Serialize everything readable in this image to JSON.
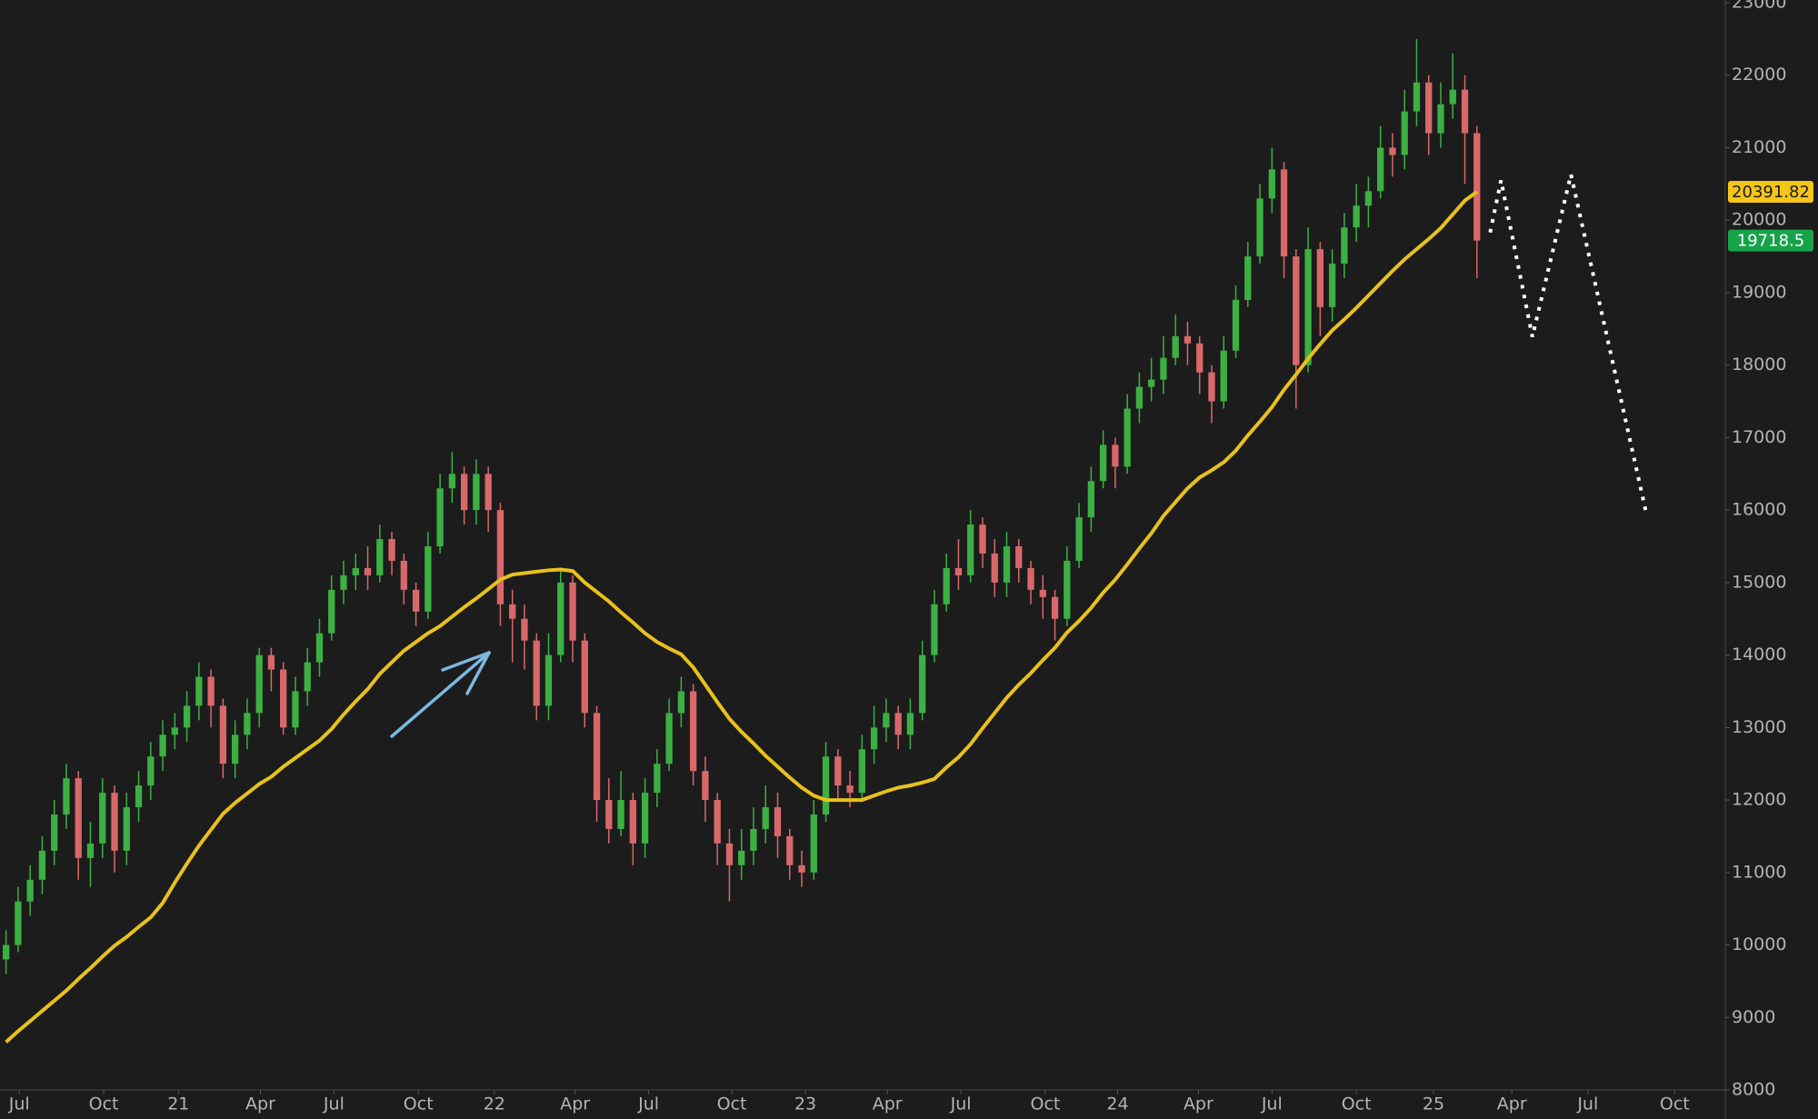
{
  "chart_data": {
    "type": "candlestick",
    "background": "#1c1c1c",
    "up_color": "#3cb043",
    "down_color": "#d9686a",
    "xlim": [
      -0.5,
      142.6
    ],
    "ylim": [
      8000,
      23000
    ],
    "xticks": [
      {
        "value": 1.1,
        "label": "Jul"
      },
      {
        "value": 8.1,
        "label": "Oct"
      },
      {
        "value": 14.3,
        "label": "21"
      },
      {
        "value": 21.1,
        "label": "Apr"
      },
      {
        "value": 27.2,
        "label": "Jul"
      },
      {
        "value": 34.2,
        "label": "Oct"
      },
      {
        "value": 40.5,
        "label": "22"
      },
      {
        "value": 47.2,
        "label": "Apr"
      },
      {
        "value": 53.3,
        "label": "Jul"
      },
      {
        "value": 60.2,
        "label": "Oct"
      },
      {
        "value": 66.3,
        "label": "23"
      },
      {
        "value": 73.1,
        "label": "Apr"
      },
      {
        "value": 79.2,
        "label": "Jul"
      },
      {
        "value": 86.2,
        "label": "Oct"
      },
      {
        "value": 92.2,
        "label": "24"
      },
      {
        "value": 98.9,
        "label": "Apr"
      },
      {
        "value": 105,
        "label": "Jul"
      },
      {
        "value": 112,
        "label": "Oct"
      },
      {
        "value": 118.4,
        "label": "25"
      },
      {
        "value": 124.9,
        "label": "Apr"
      },
      {
        "value": 131.2,
        "label": "Jul"
      },
      {
        "value": 138.4,
        "label": "Oct"
      }
    ],
    "yticks": [
      8000,
      9000,
      10000,
      11000,
      12000,
      13000,
      14000,
      15000,
      16000,
      17000,
      18000,
      19000,
      20000,
      21000,
      22000,
      23000
    ],
    "open": [
      9800,
      10000,
      10600,
      10900,
      11300,
      11800,
      12300,
      11200,
      11400,
      12100,
      11300,
      11900,
      12200,
      12600,
      12900,
      13000,
      13300,
      13700,
      13300,
      12500,
      12900,
      13200,
      14000,
      13800,
      13000,
      13500,
      13900,
      14300,
      14900,
      15100,
      15200,
      15100,
      15600,
      15300,
      14900,
      14600,
      15500,
      16300,
      16500,
      16000,
      16500,
      16000,
      14700,
      14500,
      14200,
      13300,
      14000,
      15000,
      14200,
      13200,
      12000,
      11600,
      12000,
      11400,
      12100,
      12500,
      13200,
      13500,
      12400,
      12000,
      11400,
      11100,
      11300,
      11600,
      11900,
      11500,
      11100,
      11000,
      11800,
      12600,
      12200,
      12100,
      12700,
      13000,
      13200,
      12900,
      13200,
      14000,
      14700,
      15200,
      15100,
      15800,
      15400,
      15000,
      15500,
      15200,
      14900,
      14800,
      14500,
      15300,
      15900,
      16400,
      16900,
      16600,
      17400,
      17700,
      17800,
      18100,
      18400,
      18300,
      17900,
      17500,
      18200,
      18900,
      19500,
      20300,
      20700,
      19500,
      18000,
      19600,
      18800,
      19400,
      19900,
      20200,
      20400,
      21000,
      20900,
      21500,
      21900,
      21200,
      21600,
      21800,
      21200
    ],
    "high": [
      10200,
      10800,
      11100,
      11500,
      12000,
      12500,
      12400,
      11700,
      12300,
      12200,
      12100,
      12400,
      12800,
      13100,
      13200,
      13500,
      13900,
      13800,
      13400,
      13100,
      13400,
      14100,
      14100,
      13900,
      13700,
      14100,
      14500,
      15100,
      15300,
      15400,
      15500,
      15800,
      15700,
      15400,
      15000,
      15700,
      16500,
      16800,
      16600,
      16700,
      16600,
      16100,
      14900,
      14700,
      14300,
      14300,
      15200,
      15100,
      14300,
      13300,
      12300,
      12400,
      12100,
      12300,
      12700,
      13400,
      13700,
      13600,
      12600,
      12100,
      11600,
      11600,
      11900,
      12200,
      12100,
      11600,
      11300,
      12000,
      12800,
      12700,
      12400,
      12900,
      13300,
      13400,
      13300,
      13400,
      14200,
      14900,
      15400,
      15600,
      16000,
      15900,
      15600,
      15700,
      15600,
      15300,
      15100,
      14900,
      15500,
      16100,
      16600,
      17100,
      17000,
      17600,
      17900,
      18100,
      18400,
      18700,
      18600,
      18400,
      18000,
      18400,
      19100,
      19700,
      20500,
      21000,
      20800,
      19600,
      19900,
      19700,
      19600,
      20100,
      20500,
      20600,
      21300,
      21200,
      21800,
      22500,
      22000,
      21900,
      22300,
      22000,
      21300
    ],
    "low": [
      9600,
      9900,
      10400,
      10700,
      11100,
      11600,
      10900,
      10800,
      11200,
      11000,
      11100,
      11700,
      12000,
      12400,
      12700,
      12800,
      13100,
      13000,
      12300,
      12300,
      12700,
      13000,
      13500,
      12900,
      12900,
      13300,
      13700,
      14200,
      14700,
      14900,
      14900,
      15000,
      15100,
      14700,
      14400,
      14500,
      15400,
      16100,
      15800,
      15800,
      15700,
      14400,
      13900,
      13800,
      13100,
      13100,
      13900,
      13900,
      13000,
      11700,
      11400,
      11500,
      11100,
      11200,
      11900,
      12400,
      13000,
      12200,
      11700,
      11100,
      10600,
      10900,
      11100,
      11400,
      11200,
      10900,
      10800,
      10900,
      11700,
      12000,
      11900,
      12000,
      12500,
      12800,
      12700,
      12700,
      13100,
      13900,
      14600,
      14900,
      15000,
      15200,
      14800,
      14800,
      15000,
      14700,
      14500,
      14200,
      14400,
      15200,
      15700,
      16300,
      16300,
      16500,
      17200,
      17500,
      17600,
      18000,
      18000,
      17600,
      17200,
      17400,
      18100,
      18800,
      19400,
      20100,
      19200,
      17400,
      17900,
      18400,
      18600,
      19200,
      19700,
      19900,
      20300,
      20600,
      20700,
      21300,
      20900,
      21000,
      21400,
      20500,
      19200
    ],
    "close": [
      10000,
      10600,
      10900,
      11300,
      11800,
      12300,
      11200,
      11400,
      12100,
      11300,
      11900,
      12200,
      12600,
      12900,
      13000,
      13300,
      13700,
      13300,
      12500,
      12900,
      13200,
      14000,
      13800,
      13000,
      13500,
      13900,
      14300,
      14900,
      15100,
      15200,
      15100,
      15600,
      15300,
      14900,
      14600,
      15500,
      16300,
      16500,
      16000,
      16500,
      16000,
      14700,
      14500,
      14200,
      13300,
      14000,
      15000,
      14200,
      13200,
      12000,
      11600,
      12000,
      11400,
      12100,
      12500,
      13200,
      13500,
      12400,
      12000,
      11400,
      11100,
      11300,
      11600,
      11900,
      11500,
      11100,
      11000,
      11800,
      12600,
      12200,
      12100,
      12700,
      13000,
      13200,
      12900,
      13200,
      14000,
      14700,
      15200,
      15100,
      15800,
      15400,
      15000,
      15500,
      15200,
      14900,
      14800,
      14500,
      15300,
      15900,
      16400,
      16900,
      16600,
      17400,
      17700,
      17800,
      18100,
      18400,
      18300,
      17900,
      17500,
      18200,
      18900,
      19500,
      20300,
      20700,
      19500,
      18000,
      19600,
      18800,
      19400,
      19900,
      20200,
      20400,
      21000,
      20900,
      21500,
      21900,
      21200,
      21600,
      21800,
      21200,
      19718.5
    ],
    "ma": {
      "color": "#e8c11c",
      "values": [
        8660,
        8810,
        8950,
        9090,
        9230,
        9370,
        9530,
        9680,
        9840,
        9990,
        10110,
        10250,
        10380,
        10580,
        10860,
        11120,
        11370,
        11590,
        11810,
        11960,
        12090,
        12220,
        12320,
        12460,
        12580,
        12700,
        12820,
        12980,
        13180,
        13360,
        13530,
        13740,
        13900,
        14060,
        14180,
        14300,
        14400,
        14530,
        14660,
        14780,
        14910,
        15040,
        15110,
        15130,
        15150,
        15170,
        15180,
        15160,
        15000,
        14870,
        14740,
        14590,
        14450,
        14300,
        14180,
        14090,
        14010,
        13830,
        13590,
        13350,
        13120,
        12940,
        12780,
        12610,
        12460,
        12310,
        12170,
        12060,
        12000,
        12000,
        12000,
        12000,
        12060,
        12120,
        12170,
        12200,
        12240,
        12290,
        12450,
        12590,
        12770,
        12990,
        13200,
        13410,
        13590,
        13750,
        13930,
        14100,
        14310,
        14470,
        14650,
        14860,
        15040,
        15250,
        15470,
        15680,
        15920,
        16110,
        16300,
        16450,
        16550,
        16660,
        16820,
        17030,
        17220,
        17420,
        17660,
        17870,
        18090,
        18290,
        18480,
        18630,
        18790,
        18960,
        19130,
        19300,
        19460,
        19600,
        19740,
        19890,
        20080,
        20270,
        20391.82
      ]
    },
    "projection": {
      "color": "#ffffff",
      "x": [
        123.1,
        124,
        126.6,
        129.8,
        136
      ],
      "values": [
        19830,
        20550,
        18390,
        20630,
        15990
      ]
    }
  }
}
